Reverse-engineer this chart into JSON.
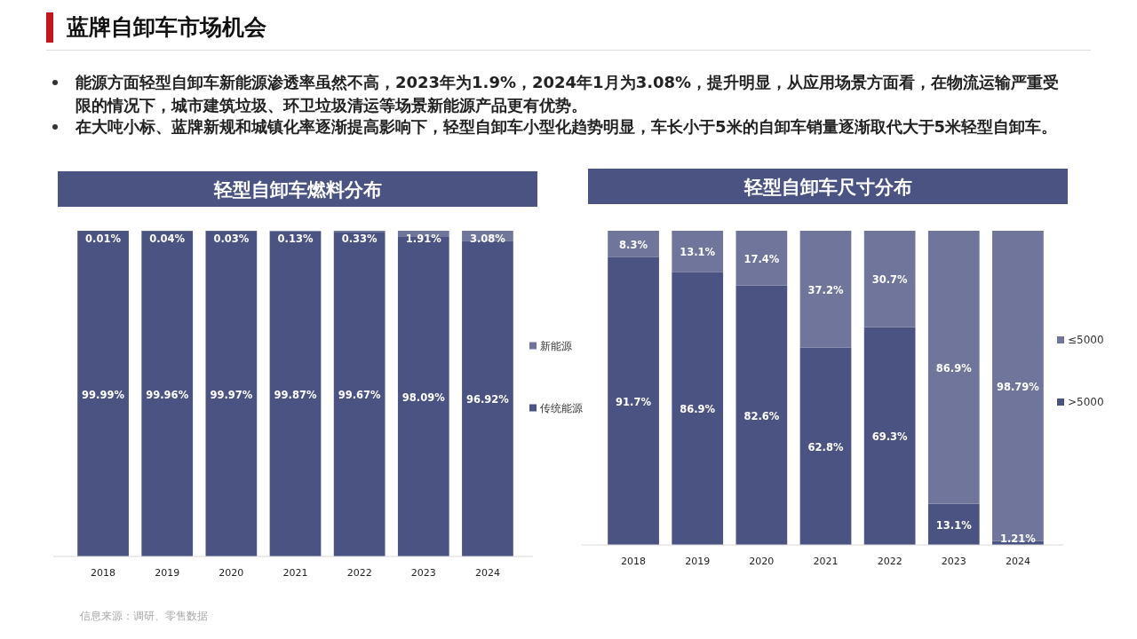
{
  "chart_data": [
    {
      "type": "bar",
      "stacked": true,
      "title": "轻型自卸车燃料分布",
      "categories": [
        "2018",
        "2019",
        "2020",
        "2021",
        "2022",
        "2023",
        "2024"
      ],
      "legend": "right",
      "series": [
        {
          "name": "传统能源",
          "color": "#4b5382",
          "values": [
            99.99,
            99.96,
            99.97,
            99.87,
            99.67,
            98.09,
            96.92
          ],
          "value_labels": [
            "99.99%",
            "99.96%",
            "99.97%",
            "99.87%",
            "99.67%",
            "98.09%",
            "96.92%"
          ]
        },
        {
          "name": "新能源",
          "color": "#6f759b",
          "values": [
            0.01,
            0.04,
            0.03,
            0.13,
            0.33,
            1.91,
            3.08
          ],
          "value_labels": [
            "0.01%",
            "0.04%",
            "0.03%",
            "0.13%",
            "0.33%",
            "1.91%",
            "3.08%"
          ]
        }
      ],
      "annotations": [
        "蓝牌自卸车市场机会",
        "能源方面轻型自卸车新能源渗透率虽然不高，2023年为1.9%，2024年1月为3.08%，提升明显，从应用场景方面看，在物流运输严重受限的情况下，城市建筑垃圾、环卫垃圾清运等场景新能源产品更有优势。",
        "在大吨小标、蓝牌新规和城镇化率逐渐提高影响下，轻型自卸车小型化趋势明显，车长小于5米的自卸车销量逐渐取代大于5米轻型自卸车。",
        "信息来源：调研、零售数据"
      ]
    },
    {
      "type": "bar",
      "stacked": true,
      "title": "轻型自卸车尺寸分布",
      "categories": [
        "2018",
        "2019",
        "2020",
        "2021",
        "2022",
        "2023",
        "2024"
      ],
      "legend": "right",
      "series": [
        {
          "name": ">5000",
          "color": "#4b5382",
          "values": [
            91.7,
            86.9,
            82.6,
            62.8,
            69.3,
            13.1,
            1.21
          ],
          "value_labels": [
            "91.7%",
            "86.9%",
            "82.6%",
            "62.8%",
            "69.3%",
            "13.1%",
            "1.21%"
          ]
        },
        {
          "name": "≤5000",
          "color": "#6f759b",
          "values": [
            8.3,
            13.1,
            17.4,
            37.2,
            30.7,
            86.9,
            98.79
          ],
          "value_labels": [
            "8.3%",
            "13.1%",
            "17.4%",
            "37.2%",
            "30.7%",
            "86.9%",
            "98.79%"
          ]
        }
      ]
    }
  ]
}
